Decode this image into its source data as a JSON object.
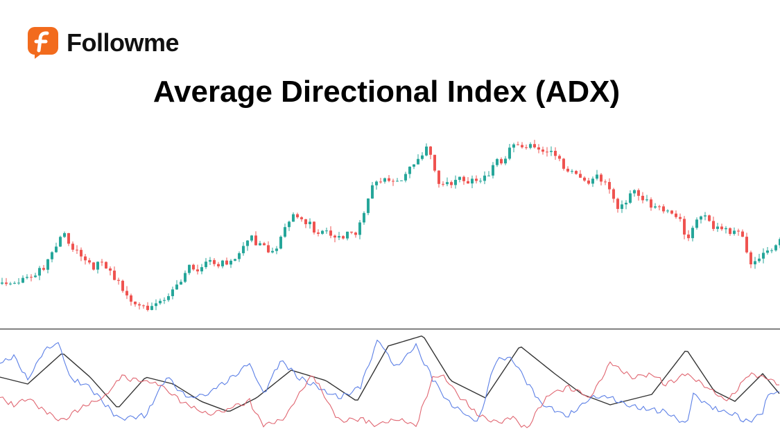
{
  "brand": {
    "name": "Followme",
    "logo_color": "#f26b1d"
  },
  "title": "Average Directional Index (ADX)",
  "chart_data": [
    {
      "type": "candlestick",
      "title": "",
      "grid": false,
      "colors": {
        "up": "#26a69a",
        "down": "#ef5350"
      },
      "price_keypoints": {
        "index": [
          0,
          10,
          15,
          20,
          25,
          30,
          35,
          40,
          45,
          50,
          55,
          60,
          65,
          70,
          75,
          80,
          85,
          90,
          95,
          100,
          102,
          105,
          110,
          115,
          120,
          123,
          130,
          135,
          140,
          145,
          148,
          152,
          157,
          162,
          165,
          168,
          173,
          178,
          180,
          185,
          187
        ],
        "close": [
          70,
          90,
          140,
          105,
          90,
          50,
          40,
          45,
          90,
          105,
          95,
          135,
          120,
          165,
          150,
          145,
          135,
          225,
          220,
          245,
          265,
          215,
          225,
          210,
          250,
          275,
          260,
          245,
          225,
          215,
          175,
          210,
          180,
          165,
          140,
          175,
          145,
          135,
          105,
          125,
          130
        ]
      }
    },
    {
      "type": "line",
      "title": "",
      "grid": false,
      "series": [
        {
          "key": "adx",
          "color": "#333333",
          "x": [
            0,
            40,
            90,
            130,
            170,
            210,
            250,
            290,
            330,
            370,
            420,
            470,
            515,
            560,
            610,
            650,
            700,
            750,
            800,
            840,
            880,
            940,
            990,
            1030,
            1060,
            1100,
            1125
          ],
          "y": [
            85,
            75,
            120,
            85,
            40,
            85,
            75,
            50,
            35,
            55,
            95,
            80,
            50,
            130,
            145,
            80,
            55,
            130,
            90,
            60,
            45,
            60,
            125,
            65,
            50,
            90,
            60
          ]
        },
        {
          "key": "plus_di",
          "color": "#5b7fe6",
          "x": [
            0,
            20,
            40,
            65,
            85,
            100,
            130,
            170,
            210,
            240,
            270,
            300,
            340,
            360,
            380,
            405,
            430,
            460,
            490,
            520,
            545,
            570,
            600,
            625,
            650,
            690,
            715,
            740,
            780,
            820,
            850,
            880,
            920,
            960,
            990,
            1000,
            1030,
            1060,
            1080,
            1100,
            1110,
            1125
          ],
          "y": [
            105,
            115,
            80,
            125,
            135,
            85,
            70,
            25,
            30,
            85,
            55,
            60,
            90,
            105,
            60,
            110,
            85,
            70,
            55,
            70,
            140,
            100,
            130,
            80,
            45,
            20,
            110,
            110,
            45,
            30,
            55,
            55,
            40,
            35,
            15,
            60,
            40,
            30,
            20,
            35,
            65,
            60
          ]
        },
        {
          "key": "minus_di",
          "color": "#e06570",
          "x": [
            0,
            20,
            40,
            60,
            90,
            115,
            150,
            175,
            200,
            230,
            260,
            300,
            330,
            360,
            380,
            410,
            450,
            490,
            520,
            540,
            580,
            600,
            625,
            640,
            660,
            690,
            710,
            740,
            760,
            790,
            820,
            850,
            880,
            910,
            940,
            960,
            990,
            1020,
            1050,
            1080,
            1100,
            1125
          ],
          "y": [
            55,
            45,
            55,
            40,
            20,
            40,
            55,
            85,
            80,
            75,
            50,
            30,
            40,
            50,
            15,
            25,
            90,
            20,
            25,
            15,
            25,
            15,
            85,
            85,
            60,
            30,
            20,
            25,
            10,
            60,
            70,
            55,
            105,
            85,
            90,
            75,
            90,
            70,
            50,
            90,
            85,
            75
          ]
        }
      ]
    }
  ]
}
